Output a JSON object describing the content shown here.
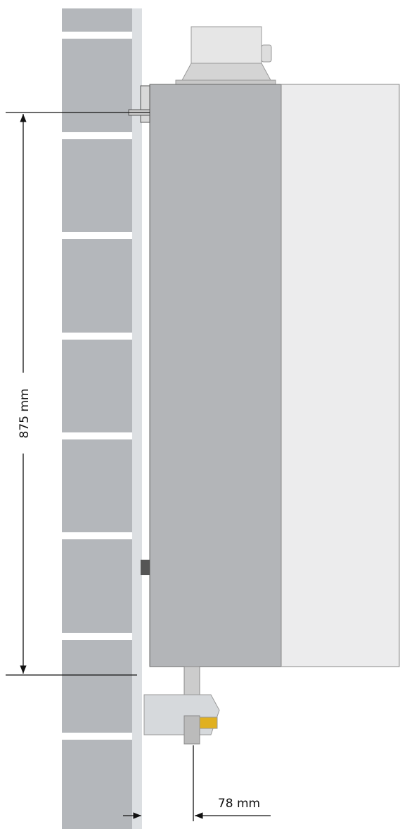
{
  "dimensions": [
    {
      "label": "875 mm"
    },
    {
      "label": "78 mm"
    }
  ]
}
